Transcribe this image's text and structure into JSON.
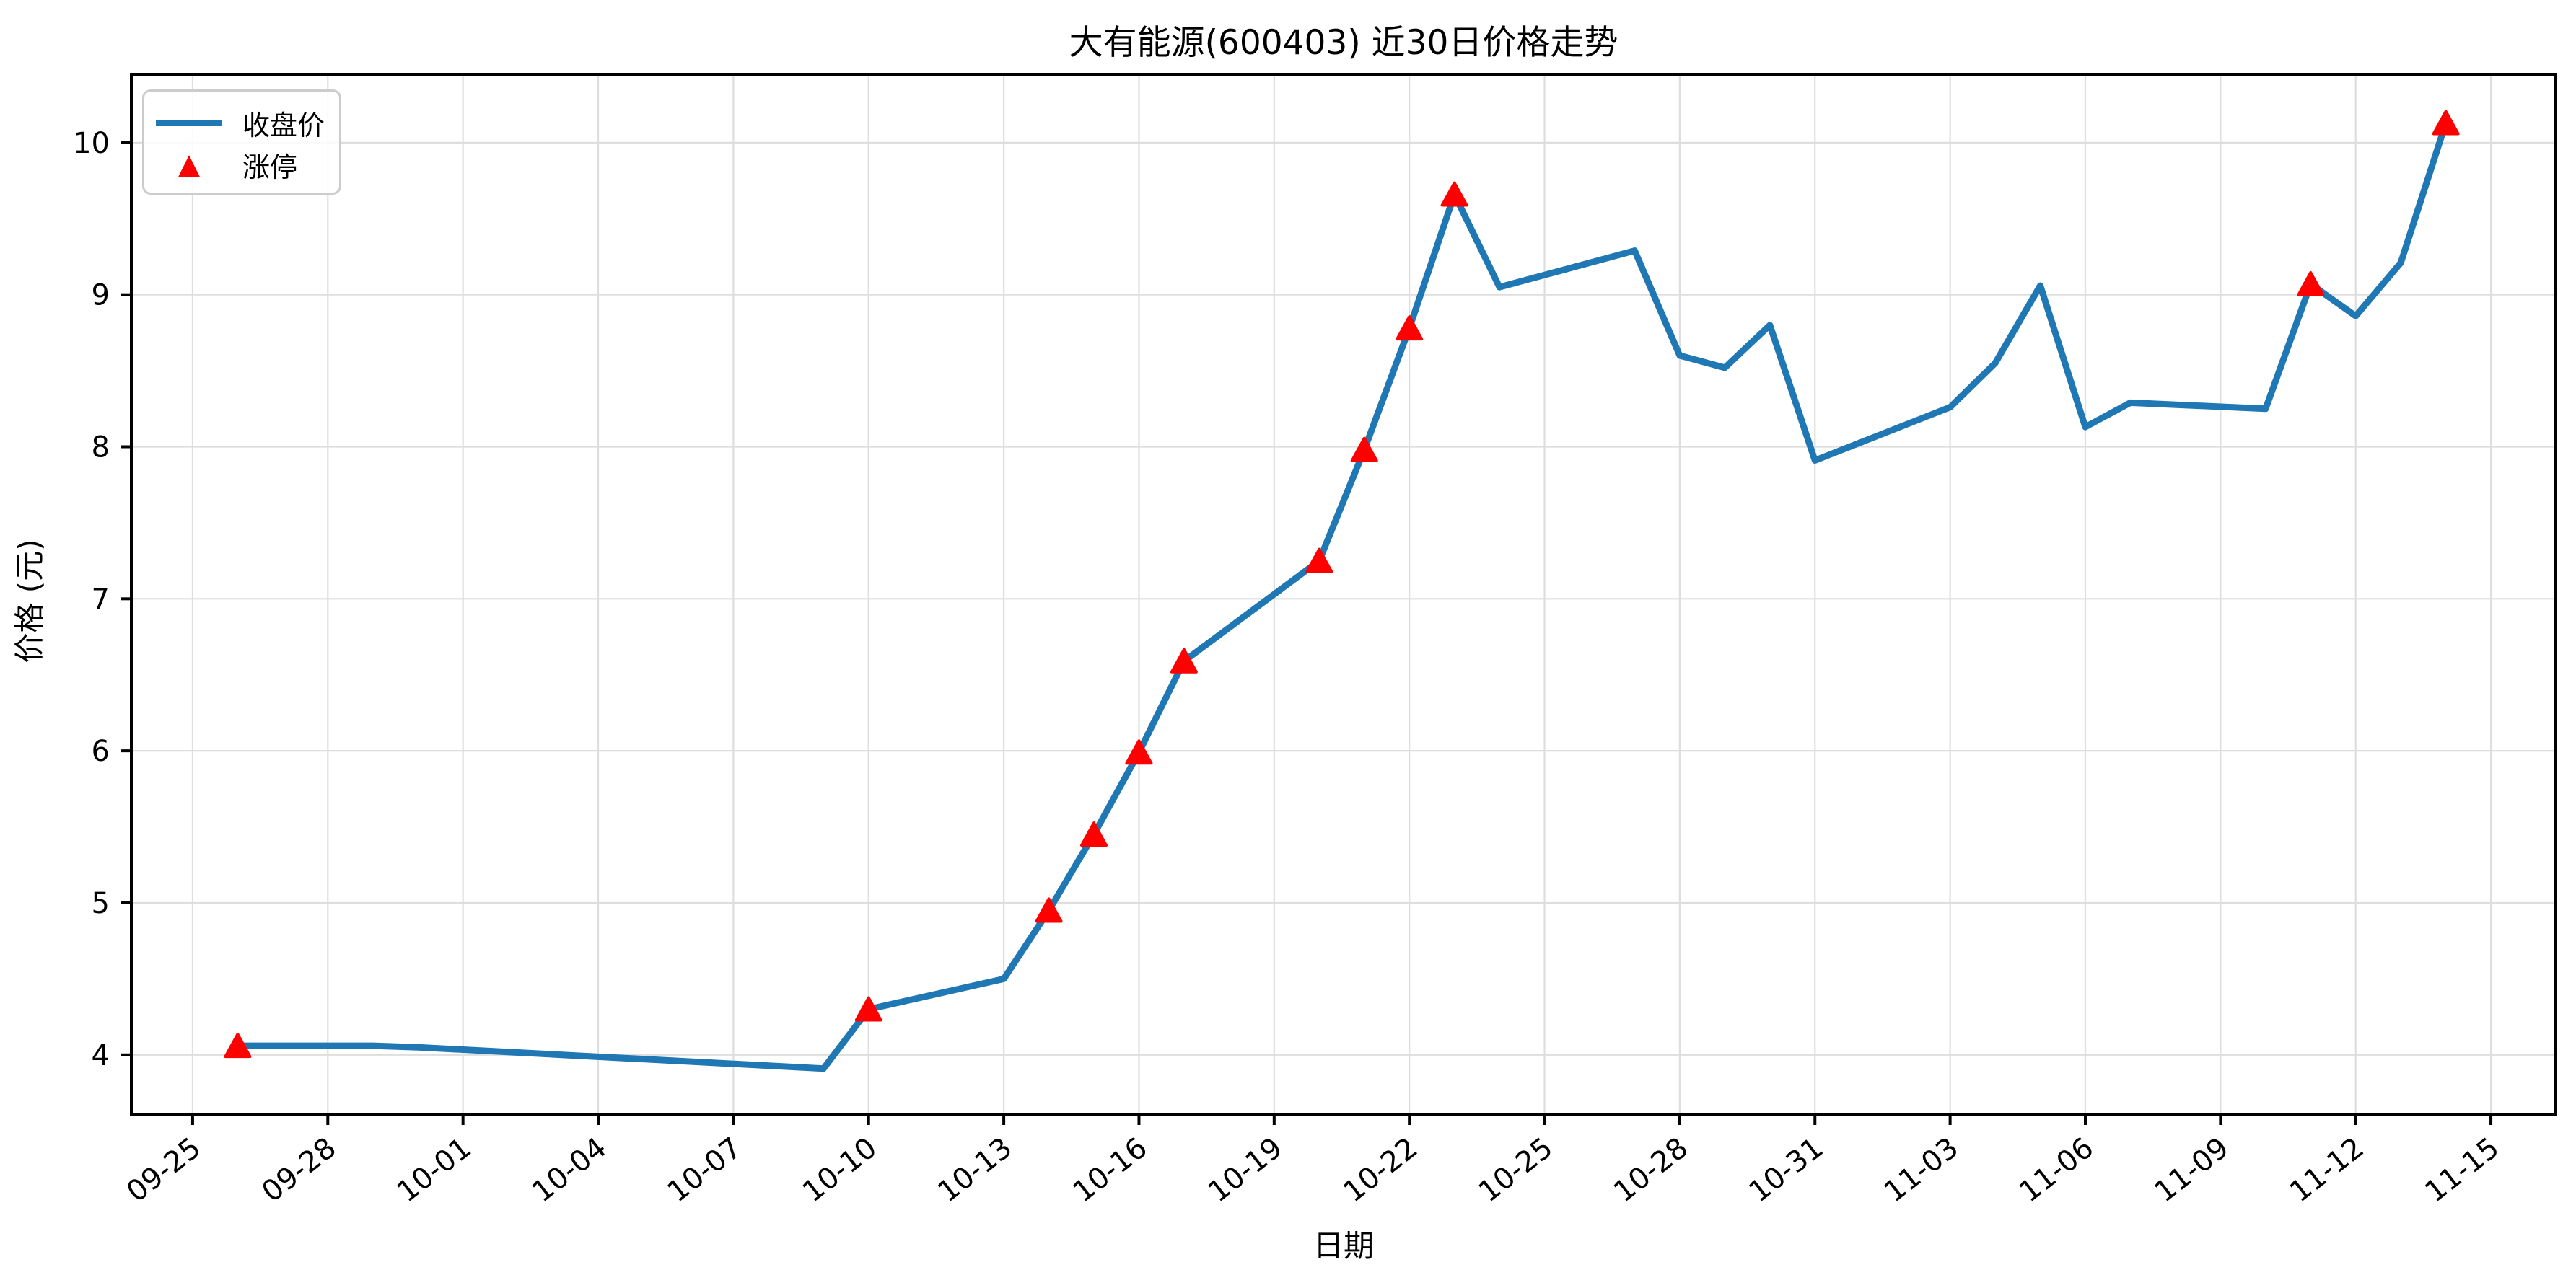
{
  "chart_data": {
    "type": "line",
    "title": "大有能源(600403) 近30日价格走势",
    "xlabel": "日期",
    "ylabel": "价格 (元)",
    "grid": true,
    "legend_position": "upper-left",
    "legend": [
      {
        "label": "收盘价",
        "marker": "line",
        "color": "#1f77b4"
      },
      {
        "label": "涨停",
        "marker": "triangle-up",
        "color": "#ff0000"
      }
    ],
    "x_tick_labels": [
      "09-25",
      "09-28",
      "10-01",
      "10-04",
      "10-07",
      "10-10",
      "10-13",
      "10-16",
      "10-19",
      "10-22",
      "10-25",
      "10-28",
      "10-31",
      "11-03",
      "11-06",
      "11-09",
      "11-12",
      "11-15"
    ],
    "y_ticks": [
      4,
      5,
      6,
      7,
      8,
      9,
      10
    ],
    "ylim": [
      3.61,
      10.45
    ],
    "xlim_days_after_0925": [
      -1.36,
      52.44
    ],
    "series": [
      {
        "name": "收盘价",
        "color": "#1f77b4",
        "dates": [
          "09-26",
          "09-29",
          "09-30",
          "10-09",
          "10-10",
          "10-13",
          "10-14",
          "10-15",
          "10-16",
          "10-17",
          "10-20",
          "10-21",
          "10-22",
          "10-23",
          "10-24",
          "10-27",
          "10-28",
          "10-29",
          "10-30",
          "10-31",
          "11-03",
          "11-04",
          "11-05",
          "11-06",
          "11-07",
          "11-10",
          "11-11",
          "11-12",
          "11-13",
          "11-14"
        ],
        "values": [
          4.06,
          4.06,
          4.05,
          3.91,
          4.3,
          4.5,
          4.95,
          5.45,
          5.99,
          6.59,
          7.25,
          7.98,
          8.78,
          9.66,
          9.05,
          9.29,
          8.6,
          8.52,
          8.8,
          7.91,
          8.26,
          8.55,
          9.06,
          8.13,
          8.29,
          8.25,
          9.07,
          8.86,
          9.21,
          10.13
        ]
      }
    ],
    "limit_up": {
      "name": "涨停",
      "color": "#ff0000",
      "dates": [
        "09-26",
        "10-10",
        "10-14",
        "10-15",
        "10-16",
        "10-17",
        "10-20",
        "10-21",
        "10-22",
        "10-23",
        "11-11",
        "11-14"
      ]
    },
    "colors": {
      "background": "#ffffff",
      "gridline": "#dedede",
      "spine": "#000000",
      "text": "#000000"
    }
  }
}
